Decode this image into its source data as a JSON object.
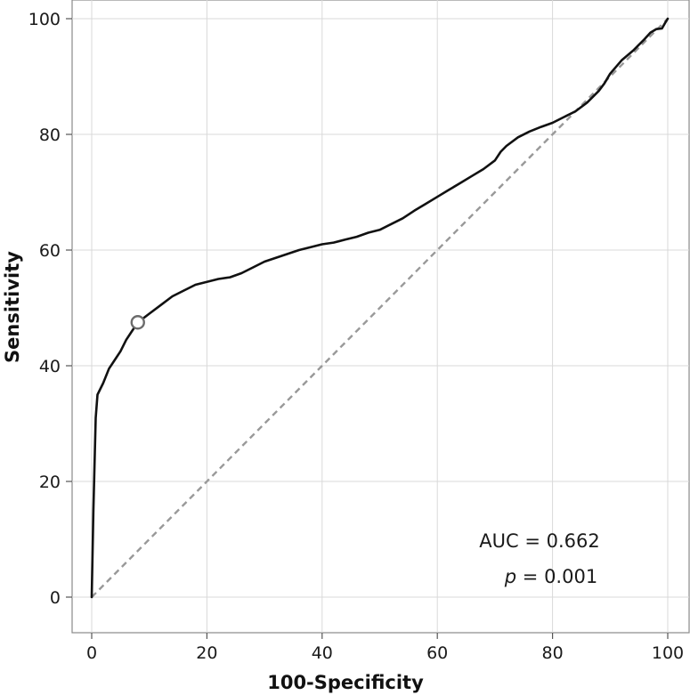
{
  "chart_data": {
    "type": "line",
    "xlabel": "100-Specificity",
    "ylabel": "Sensitivity",
    "xlim": [
      0,
      100
    ],
    "ylim": [
      0,
      100
    ],
    "x_ticks": [
      0,
      20,
      40,
      60,
      80,
      100
    ],
    "y_ticks": [
      0,
      20,
      40,
      60,
      80,
      100
    ],
    "grid": true,
    "series": [
      {
        "line_style": "solid",
        "color": "#111111",
        "x": [
          0,
          0.3,
          0.7,
          1.0,
          1.5,
          2,
          3,
          4,
          5,
          6,
          7,
          8,
          10,
          12,
          14,
          16,
          18,
          20,
          22,
          24,
          26,
          28,
          30,
          33,
          36,
          38,
          40,
          42,
          44,
          46,
          48,
          50,
          52,
          54,
          56,
          58,
          60,
          62,
          64,
          66,
          68,
          70,
          71,
          72,
          74,
          76,
          78,
          80,
          82,
          84,
          86,
          88,
          89,
          90,
          92,
          94,
          95,
          96,
          97,
          98,
          99,
          99.5,
          100
        ],
        "y": [
          0,
          15,
          31,
          35,
          36,
          37,
          39.5,
          41,
          42.5,
          44.5,
          46,
          47.5,
          49,
          50.5,
          52,
          53,
          54,
          54.5,
          55,
          55.3,
          56,
          57,
          58,
          59,
          60,
          60.5,
          61,
          61.3,
          61.8,
          62.3,
          63,
          63.5,
          64.5,
          65.5,
          66.8,
          68,
          69.2,
          70.4,
          71.6,
          72.8,
          74,
          75.5,
          77,
          78,
          79.5,
          80.5,
          81.3,
          82,
          83,
          84,
          85.5,
          87.5,
          88.8,
          90.5,
          92.8,
          94.5,
          95.5,
          96.5,
          97.6,
          98.2,
          98.3,
          99.2,
          100
        ]
      },
      {
        "line_style": "dashed",
        "color": "#999999",
        "x": [
          0,
          100
        ],
        "y": [
          0,
          100
        ]
      }
    ],
    "highlight_point": {
      "x": 8,
      "y": 47.5
    },
    "annotations": {
      "auc": "AUC = 0.662",
      "p_symbol": "p",
      "p_rest": " = 0.001"
    }
  }
}
